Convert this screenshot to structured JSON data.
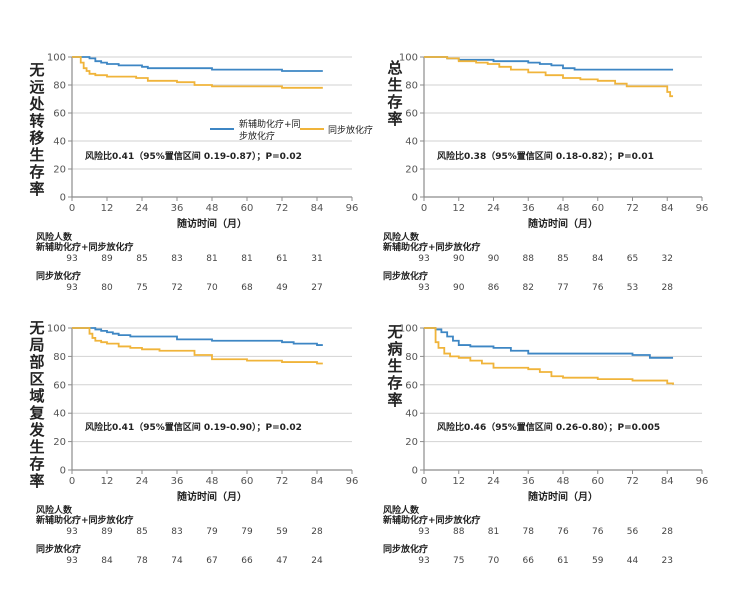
{
  "colors": {
    "blue": "#3d86c4",
    "orange": "#f0b43a",
    "axis": "#8c8c8c",
    "grid": "#d2d2d2"
  },
  "legend": {
    "series1": "新辅助化疗+同步放化疗",
    "series2": "同步放化疗"
  },
  "risk_label": "风险人数",
  "chart_data": [
    {
      "type": "line",
      "title": "无远处转移生存率",
      "title_chars": [
        "无",
        "远",
        "处",
        "转",
        "移",
        "生",
        "存",
        "率"
      ],
      "xlabel": "随访时间（月）",
      "xticks": [
        0,
        12,
        24,
        36,
        48,
        60,
        72,
        84,
        96
      ],
      "yticks": [
        0,
        20,
        40,
        60,
        80,
        100
      ],
      "xlim": [
        0,
        96
      ],
      "ylim": [
        0,
        100
      ],
      "annotation": "风险比0.41（95%置信区间 0.19-0.87）；P=0.02",
      "show_legend": true,
      "series": [
        {
          "name": "新辅助化疗+同步放化疗",
          "color": "#3d86c4",
          "x": [
            0,
            6,
            8,
            10,
            12,
            16,
            24,
            26,
            48,
            72,
            86
          ],
          "y": [
            100,
            99,
            97,
            96,
            95,
            94,
            93,
            92,
            91,
            90,
            90
          ]
        },
        {
          "name": "同步放化疗",
          "color": "#f0b43a",
          "x": [
            0,
            3,
            4,
            5,
            6,
            8,
            12,
            18,
            22,
            26,
            36,
            42,
            48,
            60,
            72,
            84,
            86
          ],
          "y": [
            100,
            96,
            92,
            90,
            88,
            87,
            86,
            86,
            85,
            83,
            82,
            80,
            79,
            79,
            78,
            78,
            78
          ]
        }
      ],
      "risk_table": {
        "x": [
          0,
          12,
          24,
          36,
          48,
          60,
          72,
          84
        ],
        "rows": [
          {
            "label": "新辅助化疗+同步放化疗",
            "values": [
              "93",
              "89",
              "85",
              "83",
              "81",
              "81",
              "61",
              "31"
            ]
          },
          {
            "label": "同步放化疗",
            "values": [
              "93",
              "80",
              "75",
              "72",
              "70",
              "68",
              "49",
              "27"
            ]
          }
        ]
      }
    },
    {
      "type": "line",
      "title": "总生存率",
      "title_chars": [
        "总",
        "生",
        "存",
        "率"
      ],
      "xlabel": "随访时间（月）",
      "xticks": [
        0,
        12,
        24,
        36,
        48,
        60,
        72,
        84,
        96
      ],
      "yticks": [
        0,
        20,
        40,
        60,
        80,
        100
      ],
      "xlim": [
        0,
        96
      ],
      "ylim": [
        0,
        100
      ],
      "annotation": "风险比0.38（95%置信区间 0.18-0.82）；P=0.01",
      "show_legend": false,
      "series": [
        {
          "name": "新辅助化疗+同步放化疗",
          "color": "#3d86c4",
          "x": [
            0,
            8,
            12,
            18,
            24,
            30,
            36,
            40,
            44,
            48,
            52,
            56,
            60,
            72,
            86
          ],
          "y": [
            100,
            99,
            98,
            98,
            97,
            97,
            96,
            95,
            94,
            92,
            91,
            91,
            91,
            91,
            91
          ]
        },
        {
          "name": "同步放化疗",
          "color": "#f0b43a",
          "x": [
            0,
            8,
            12,
            18,
            22,
            26,
            30,
            36,
            42,
            48,
            54,
            60,
            66,
            70,
            82,
            84,
            85,
            86
          ],
          "y": [
            100,
            99,
            97,
            96,
            95,
            93,
            91,
            89,
            87,
            85,
            84,
            83,
            81,
            79,
            79,
            75,
            72,
            72
          ]
        }
      ],
      "risk_table": {
        "x": [
          0,
          12,
          24,
          36,
          48,
          60,
          72,
          84
        ],
        "rows": [
          {
            "label": "新辅助化疗+同步放化疗",
            "values": [
              "93",
              "90",
              "90",
              "88",
              "85",
              "84",
              "65",
              "32"
            ]
          },
          {
            "label": "同步放化疗",
            "values": [
              "93",
              "90",
              "86",
              "82",
              "77",
              "76",
              "53",
              "28"
            ]
          }
        ]
      }
    },
    {
      "type": "line",
      "title": "无局部区域复发生存率",
      "title_chars": [
        "无",
        "局",
        "部",
        "区",
        "域",
        "复",
        "发",
        "生",
        "存",
        "率"
      ],
      "xlabel": "随访时间（月）",
      "xticks": [
        0,
        12,
        24,
        36,
        48,
        60,
        72,
        84,
        96
      ],
      "yticks": [
        0,
        20,
        40,
        60,
        80,
        100
      ],
      "xlim": [
        0,
        96
      ],
      "ylim": [
        0,
        100
      ],
      "annotation": "风险比0.41（95%置信区间 0.19-0.90）；P=0.02",
      "show_legend": false,
      "series": [
        {
          "name": "新辅助化疗+同步放化疗",
          "color": "#3d86c4",
          "x": [
            0,
            8,
            10,
            12,
            14,
            16,
            20,
            24,
            36,
            48,
            60,
            72,
            76,
            84,
            86
          ],
          "y": [
            100,
            99,
            98,
            97,
            96,
            95,
            94,
            94,
            92,
            91,
            91,
            90,
            89,
            88,
            88
          ]
        },
        {
          "name": "同步放化疗",
          "color": "#f0b43a",
          "x": [
            0,
            6,
            7,
            8,
            10,
            12,
            16,
            20,
            24,
            30,
            36,
            42,
            48,
            60,
            72,
            84,
            86
          ],
          "y": [
            100,
            96,
            93,
            91,
            90,
            89,
            87,
            86,
            85,
            84,
            84,
            81,
            78,
            77,
            76,
            75,
            75
          ]
        }
      ],
      "risk_table": {
        "x": [
          0,
          12,
          24,
          36,
          48,
          60,
          72,
          84
        ],
        "rows": [
          {
            "label": "新辅助化疗+同步放化疗",
            "values": [
              "93",
              "89",
              "85",
              "83",
              "79",
              "79",
              "59",
              "28"
            ]
          },
          {
            "label": "同步放化疗",
            "values": [
              "93",
              "84",
              "78",
              "74",
              "67",
              "66",
              "47",
              "24"
            ]
          }
        ]
      }
    },
    {
      "type": "line",
      "title": "无病生存率",
      "title_chars": [
        "无",
        "病",
        "生",
        "存",
        "率"
      ],
      "xlabel": "随访时间（月）",
      "xticks": [
        0,
        12,
        24,
        36,
        48,
        60,
        72,
        84,
        96
      ],
      "yticks": [
        0,
        20,
        40,
        60,
        80,
        100
      ],
      "xlim": [
        0,
        96
      ],
      "ylim": [
        0,
        100
      ],
      "annotation": "风险比0.46（95%置信区间 0.26-0.80）；P=0.005",
      "show_legend": false,
      "series": [
        {
          "name": "新辅助化疗+同步放化疗",
          "color": "#3d86c4",
          "x": [
            0,
            4,
            6,
            8,
            10,
            12,
            16,
            24,
            30,
            36,
            48,
            60,
            72,
            78,
            86
          ],
          "y": [
            100,
            99,
            97,
            94,
            91,
            88,
            87,
            86,
            84,
            82,
            82,
            82,
            81,
            79,
            79
          ]
        },
        {
          "name": "同步放化疗",
          "color": "#f0b43a",
          "x": [
            0,
            4,
            5,
            7,
            9,
            12,
            16,
            20,
            24,
            36,
            40,
            44,
            48,
            60,
            72,
            84,
            86
          ],
          "y": [
            100,
            90,
            86,
            82,
            80,
            79,
            77,
            75,
            72,
            71,
            69,
            66,
            65,
            64,
            63,
            61,
            60
          ]
        }
      ],
      "risk_table": {
        "x": [
          0,
          12,
          24,
          36,
          48,
          60,
          72,
          84
        ],
        "rows": [
          {
            "label": "新辅助化疗+同步放化疗",
            "values": [
              "93",
              "88",
              "81",
              "78",
              "76",
              "76",
              "56",
              "28"
            ]
          },
          {
            "label": "同步放化疗",
            "values": [
              "93",
              "75",
              "70",
              "66",
              "61",
              "59",
              "44",
              "23"
            ]
          }
        ]
      }
    }
  ]
}
